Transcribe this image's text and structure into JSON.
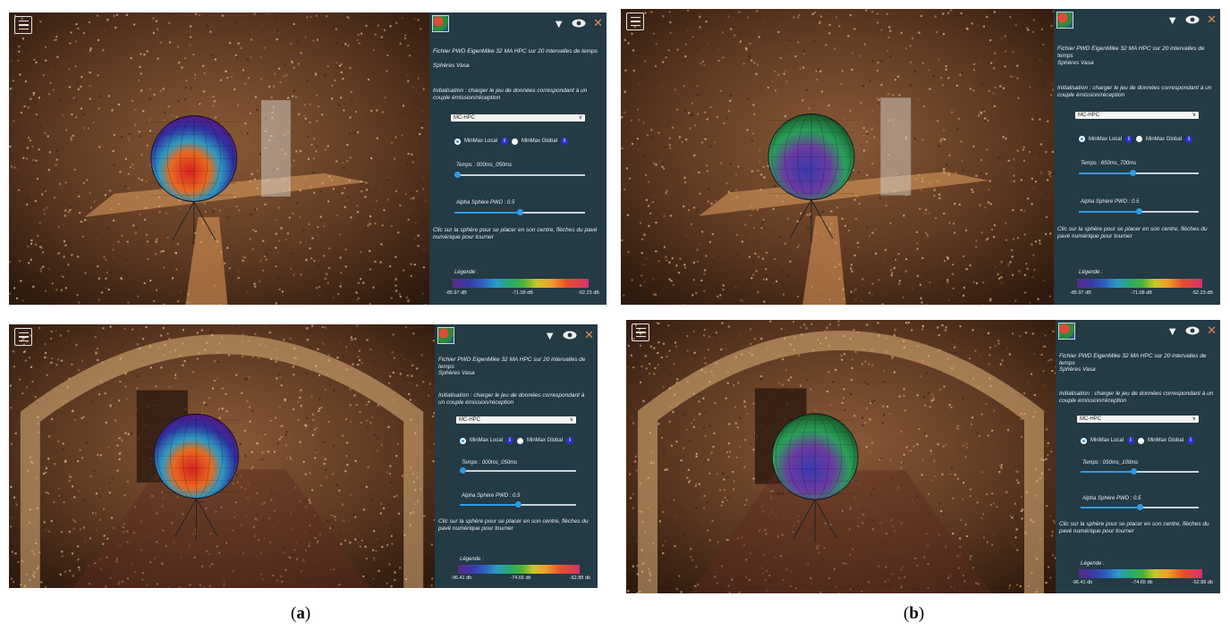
{
  "screens": [
    {
      "id": "a-top",
      "title": "Fichier PWD EigenMike 32 MA HPC sur 20 intervalles de temps",
      "subtitle": "Sphères Vasa",
      "init_text": "Initialisation : charger le jeu de données correspondant à un couple émission/réception",
      "select_value": "MC-HPC",
      "radio_local": "MinMax Local",
      "radio_global": "MinMax Global",
      "info_glyph": "i",
      "time_label": "Temps :",
      "time_value": "000ms_050ms",
      "time_fraction": 0.02,
      "alpha_label": "Alpha Sphère PWD :",
      "alpha_value": "0.5",
      "alpha_fraction": 0.5,
      "help_text": "Clic sur la sphère pour se placer en son centre, flèches du pavé numérique pour tourner",
      "legend_title": "Légende :",
      "legend_min": "-85.97 dB",
      "legend_mid": "-71.08 dB",
      "legend_max": "-52.23 dB",
      "scene": "vault"
    },
    {
      "id": "b-top",
      "title": "Fichier PWD EigenMike 32 MA HPC sur 20 intervalles de temps",
      "subtitle": "Sphères Vasa",
      "init_text": "Initialisation : charger le jeu de données correspondant à un couple émission/réception",
      "select_value": "MC-HPC",
      "radio_local": "MinMax Local",
      "radio_global": "MinMax Global",
      "info_glyph": "i",
      "time_label": "Temps :",
      "time_value": "650ms_700ms",
      "time_fraction": 0.45,
      "alpha_label": "Alpha Sphère PWD :",
      "alpha_value": "0.5",
      "alpha_fraction": 0.5,
      "help_text": "Clic sur la sphère pour se placer en son centre, flèches du pavé numérique pour tourner",
      "legend_title": "Légende :",
      "legend_min": "-85.97 dB",
      "legend_mid": "-71.08 dB",
      "legend_max": "-52.23 dB",
      "scene": "vault"
    },
    {
      "id": "a-bottom",
      "title": "Fichier PWD EigenMike 32 MA HPC sur 20 intervalles de temps",
      "subtitle": "Sphères Vasa",
      "init_text": "Initialisation : charger le jeu de données correspondant à un couple émission/réception",
      "select_value": "MC-HPC",
      "radio_local": "MinMax Local",
      "radio_global": "MinMax Global",
      "info_glyph": "i",
      "time_label": "Temps :",
      "time_value": "000ms_050ms",
      "time_fraction": 0.02,
      "alpha_label": "Alpha Sphère PWD :",
      "alpha_value": "0.5",
      "alpha_fraction": 0.5,
      "help_text": "Clic sur la sphère pour se placer en son centre, flèches du pavé numérique pour tourner",
      "legend_title": "Légende :",
      "legend_min": "-96.41 db",
      "legend_mid": "-74.65 db",
      "legend_max": "-52.88 db",
      "scene": "arch"
    },
    {
      "id": "b-bottom",
      "title": "Fichier PWD EigenMike 32 MA HPC sur 20 intervalles de temps",
      "subtitle": "Sphères Vasa",
      "init_text": "Initialisation : charger le jeu de données correspondant à un couple émission/réception",
      "select_value": "MC-HPC",
      "radio_local": "MinMax Local",
      "radio_global": "MinMax Global",
      "info_glyph": "i",
      "time_label": "Temps :",
      "time_value": "050ms_100ms",
      "time_fraction": 0.45,
      "alpha_label": "Alpha Sphère PWD :",
      "alpha_value": "0.5",
      "alpha_fraction": 0.5,
      "help_text": "Clic sur la sphère pour se placer en son centre, flèches du pavé numérique pour tourner",
      "legend_title": "Légende :",
      "legend_min": "-96.41 db",
      "legend_mid": "-74.65 db",
      "legend_max": "-52.88 db",
      "scene": "arch"
    }
  ],
  "captions": {
    "a": "a",
    "b": "b"
  },
  "colors": {
    "panel": "#243a45",
    "accent": "#2e9be6",
    "info": "#2f2fd8",
    "close": "#e08a5a"
  },
  "icons": [
    "menu-icon",
    "app-logo-icon",
    "dropdown-icon",
    "eye-icon",
    "close-icon",
    "info-icon"
  ]
}
